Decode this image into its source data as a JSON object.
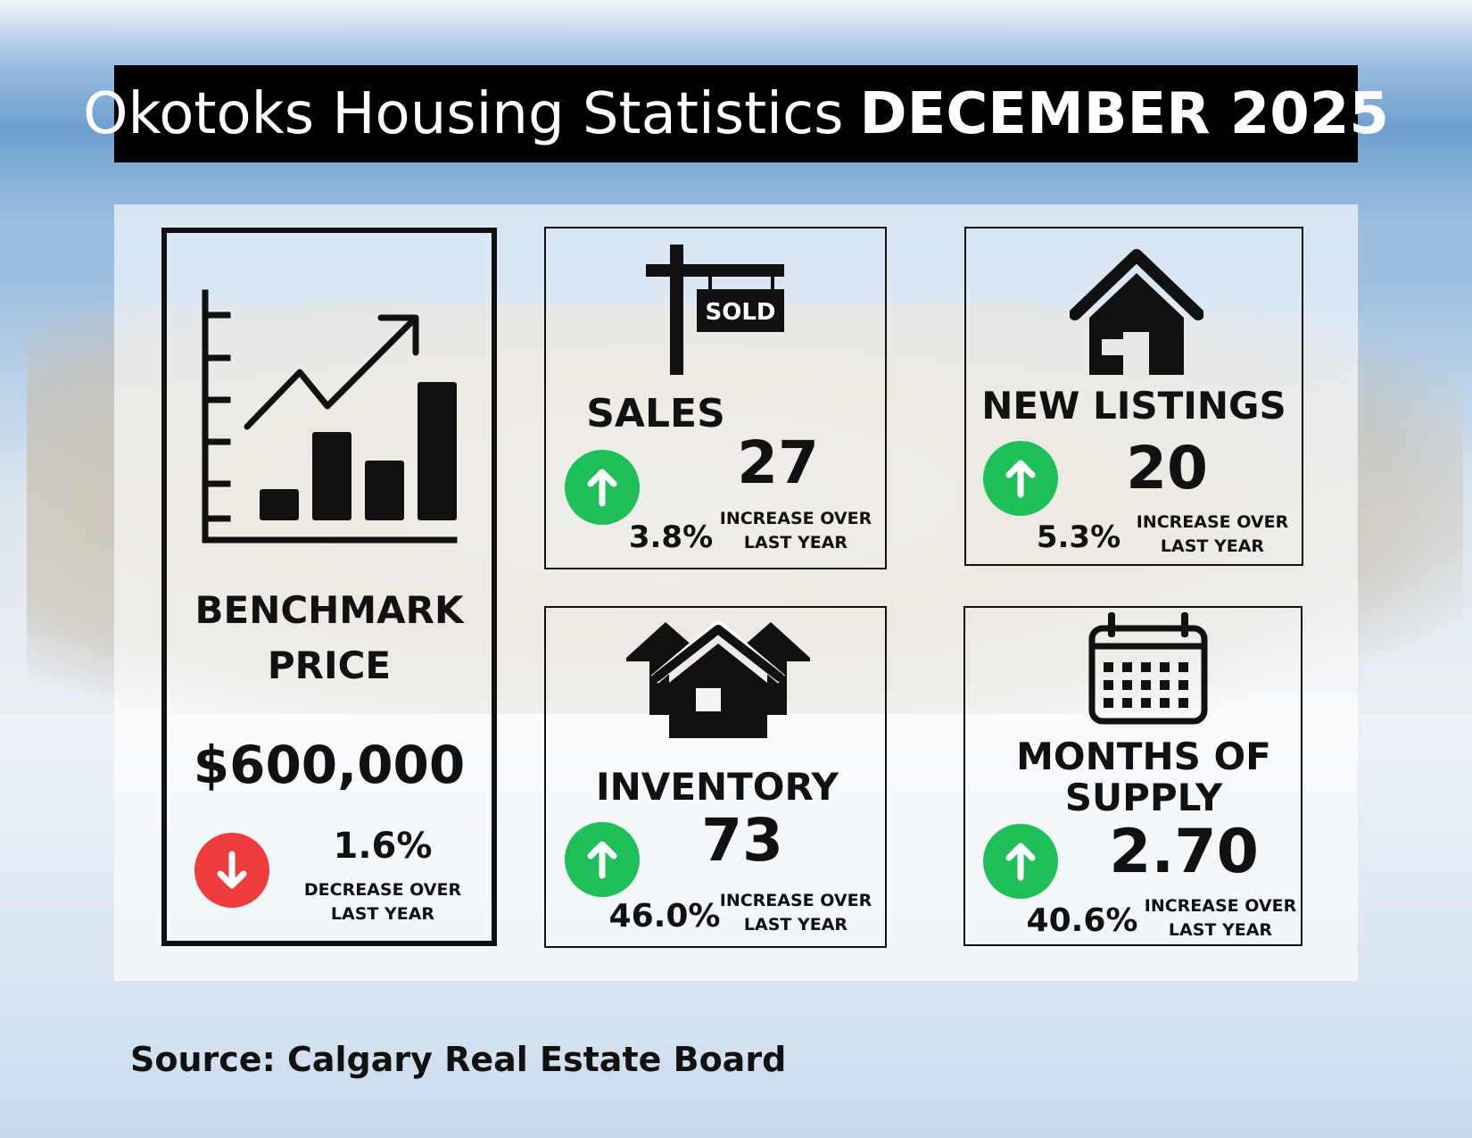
{
  "title": {
    "regular": "Okotoks Housing Statistics",
    "bold": "DECEMBER 2025"
  },
  "benchmark": {
    "label_line1": "BENCHMARK",
    "label_line2": "PRICE",
    "value": "$600,000",
    "change": "1.6%",
    "direction": "down",
    "note_line1": "DECREASE OVER",
    "note_line2": "LAST YEAR",
    "icon": "bar-chart-growth-icon"
  },
  "sales": {
    "label": "SALES",
    "value": "27",
    "change": "3.8%",
    "direction": "up",
    "note_line1": "INCREASE OVER",
    "note_line2": "LAST YEAR",
    "sign_text": "SOLD",
    "icon": "sold-sign-icon"
  },
  "new_listings": {
    "label": "NEW LISTINGS",
    "value": "20",
    "change": "5.3%",
    "direction": "up",
    "note_line1": "INCREASE OVER",
    "note_line2": "LAST YEAR",
    "icon": "house-icon"
  },
  "inventory": {
    "label": "INVENTORY",
    "value": "73",
    "change": "46.0%",
    "direction": "up",
    "note_line1": "INCREASE OVER",
    "note_line2": "LAST YEAR",
    "icon": "houses-icon"
  },
  "months_supply": {
    "label_line1": "MONTHS OF",
    "label_line2": "SUPPLY",
    "value": "2.70",
    "change": "40.6%",
    "direction": "up",
    "note_line1": "INCREASE OVER",
    "note_line2": "LAST YEAR",
    "icon": "calendar-icon"
  },
  "source": "Source: Calgary Real Estate Board",
  "colors": {
    "up": "#1fbf5a",
    "down": "#ef3c3c",
    "title_bg": "#000000"
  }
}
